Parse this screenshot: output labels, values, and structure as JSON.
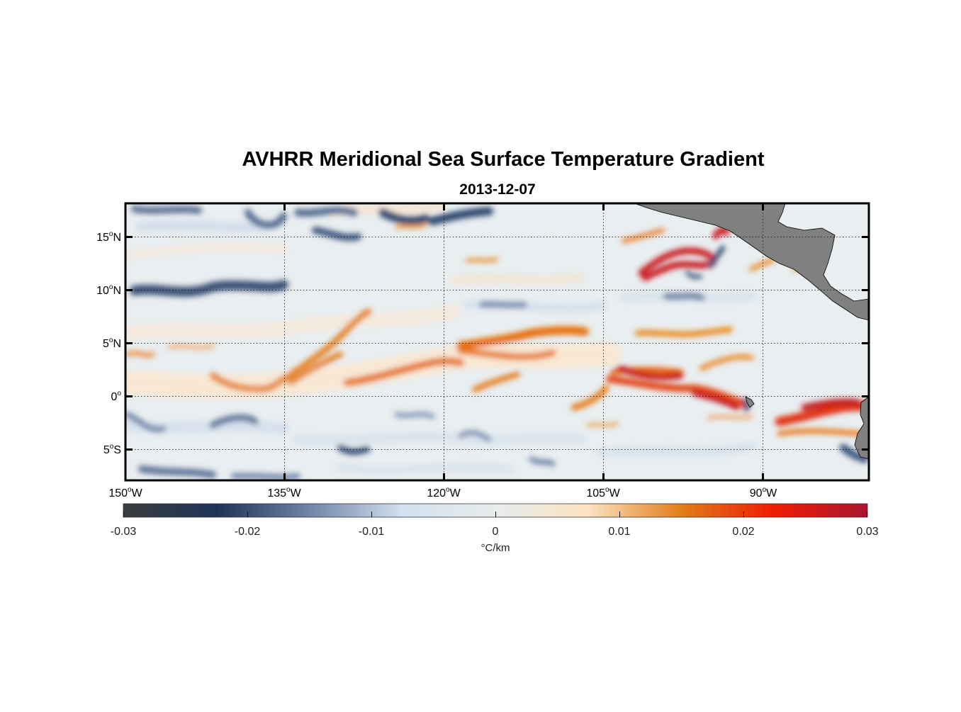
{
  "map": {
    "title": "AVHRR Meridional Sea Surface Temperature Gradient",
    "date": "2013-12-07",
    "lon_labels": [
      {
        "v": "150",
        "h": "W"
      },
      {
        "v": "135",
        "h": "W"
      },
      {
        "v": "120",
        "h": "W"
      },
      {
        "v": "105",
        "h": "W"
      },
      {
        "v": "90",
        "h": "W"
      }
    ],
    "lat_labels": [
      {
        "v": "15",
        "h": "N"
      },
      {
        "v": "10",
        "h": "N"
      },
      {
        "v": "5",
        "h": "N"
      },
      {
        "v": "0",
        "h": ""
      },
      {
        "v": "5",
        "h": "S"
      }
    ],
    "land_color": "#808080",
    "grid": "dotted"
  },
  "colorbar": {
    "ticks": [
      "-0.03",
      "-0.02",
      "-0.01",
      "0",
      "0.01",
      "0.02",
      "0.03"
    ],
    "unit": "°C/km",
    "colormap": [
      "#3a3c40",
      "#1f3459",
      "#6f84a7",
      "#d2e1ef",
      "#e7ecec",
      "#fbe2c0",
      "#e07d19",
      "#ee1c05",
      "#a81430"
    ]
  }
}
